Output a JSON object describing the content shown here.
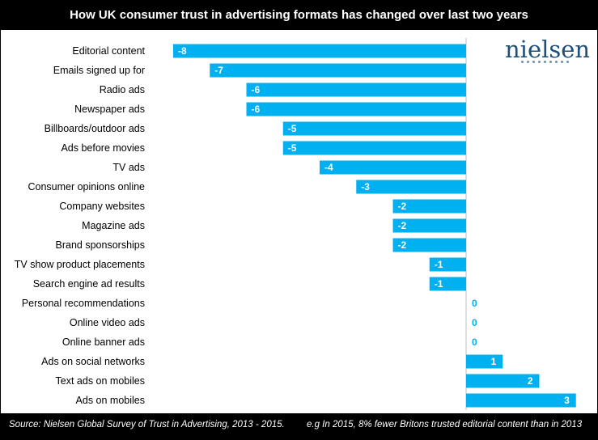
{
  "title": "How UK consumer trust in advertising formats has changed over last two years",
  "footer": {
    "source": "Source: Nielsen Global Survey of Trust in Advertising, 2013 - 2015.",
    "note": "e.g In 2015, 8% fewer Britons trusted editorial content than in 2013"
  },
  "logo": {
    "text": "nielsen",
    "icon": "nielsen-wordmark"
  },
  "colors": {
    "bar": "#00b0f0",
    "header_bg": "#000000",
    "value_label_zero": "#00b0f0",
    "logo": "#1f4e79"
  },
  "chart_data": {
    "type": "bar",
    "orientation": "horizontal",
    "title": "How UK consumer trust in advertising formats has changed over last two years",
    "categories": [
      "Editorial content",
      "Emails signed up for",
      "Radio ads",
      "Newspaper ads",
      "Billboards/outdoor ads",
      "Ads before movies",
      "TV ads",
      "Consumer opinions online",
      "Company websites",
      "Magazine ads",
      "Brand sponsorships",
      "TV show product placements",
      "Search engine ad results",
      "Personal recommendations",
      "Online video ads",
      "Online banner ads",
      "Ads on social networks",
      "Text ads on mobiles",
      "Ads on mobiles"
    ],
    "values": [
      -8,
      -7,
      -6,
      -6,
      -5,
      -5,
      -4,
      -3,
      -2,
      -2,
      -2,
      -1,
      -1,
      0,
      0,
      0,
      1,
      2,
      3
    ],
    "value_labels": [
      "-8",
      "-7",
      "-6",
      "-6",
      "-5",
      "-5",
      "-4",
      "-3",
      "-2",
      "-2",
      "-2",
      "-1",
      "-1",
      "0",
      "0",
      "0",
      "1",
      "2",
      "3"
    ],
    "xlim": [
      -8,
      3
    ],
    "grid": false,
    "legend": "none"
  }
}
